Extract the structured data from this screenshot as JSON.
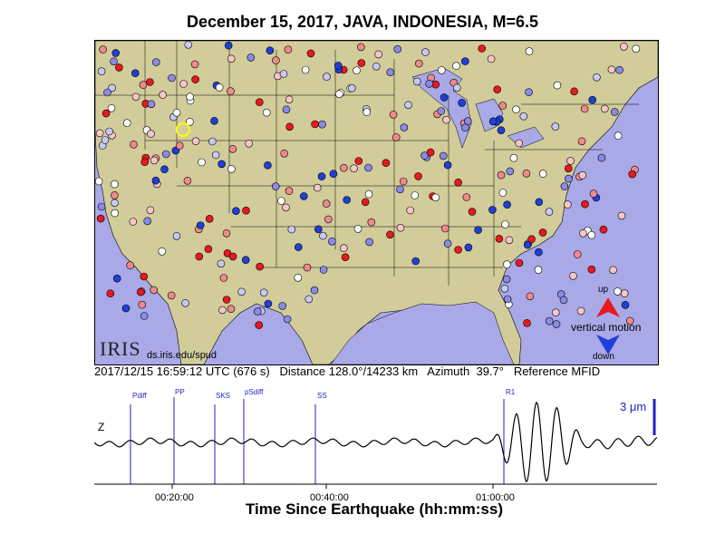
{
  "title": "December 15, 2017, JAVA, INDONESIA, M=6.5",
  "map": {
    "logo": "IRIS",
    "url": "ds.iris.edu/spud",
    "legend_up": "up",
    "legend_vertical": "vertical motion",
    "legend_down": "down",
    "colors": {
      "land": "#d2cc9a",
      "water": "#a9a9e8",
      "up": "#e8191f",
      "down": "#1f3fd8",
      "marker": "#ffff00"
    }
  },
  "info": {
    "time": "2017/12/15 16:59:12 UTC (676 s)",
    "distance": "Distance 128.0°/14233 km",
    "azimuth": "Azimuth  39.7°",
    "reference": "Reference MFID"
  },
  "trace": {
    "component": "Z",
    "scale": "3 μm",
    "phases": [
      "Pdiff",
      "PP",
      "SKS",
      "pSdiff",
      "SS",
      "R1"
    ]
  },
  "axis": {
    "ticks": [
      "00:20:00",
      "00:40:00",
      "01:00:00"
    ],
    "xlabel": "Time Since Earthquake (hh:mm:ss)"
  }
}
